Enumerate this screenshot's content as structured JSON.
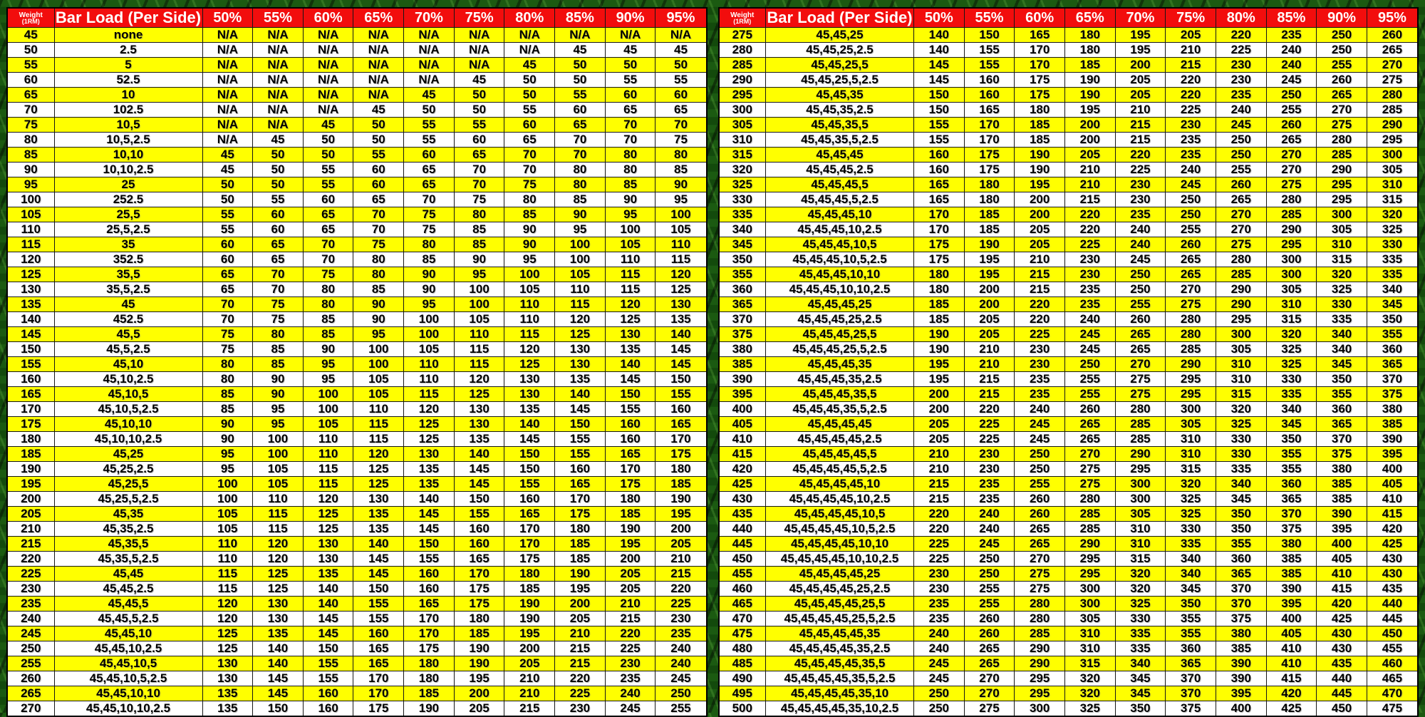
{
  "header": {
    "weight_line1": "Weight",
    "weight_line2": "(1RM)",
    "barload": "Bar Load (Per Side)",
    "percents": [
      "50%",
      "55%",
      "60%",
      "65%",
      "70%",
      "75%",
      "80%",
      "85%",
      "90%",
      "95%"
    ]
  },
  "colors": {
    "header_bg": "#f20d0d",
    "header_text": "#ffffff",
    "row_yellow": "#ffff00",
    "row_white": "#ffffff",
    "cell_text": "#000000",
    "grid": "#161616",
    "background_green": "#1b5a11"
  },
  "chart_data": {
    "type": "table",
    "columns": [
      "Weight (1RM)",
      "Bar Load (Per Side)",
      "50%",
      "55%",
      "60%",
      "65%",
      "70%",
      "75%",
      "80%",
      "85%",
      "90%",
      "95%"
    ],
    "left_rows": [
      [
        "45",
        "none",
        "N/A",
        "N/A",
        "N/A",
        "N/A",
        "N/A",
        "N/A",
        "N/A",
        "N/A",
        "N/A",
        "N/A"
      ],
      [
        "50",
        "2.5",
        "N/A",
        "N/A",
        "N/A",
        "N/A",
        "N/A",
        "N/A",
        "N/A",
        "45",
        "45",
        "45"
      ],
      [
        "55",
        "5",
        "N/A",
        "N/A",
        "N/A",
        "N/A",
        "N/A",
        "N/A",
        "45",
        "50",
        "50",
        "50"
      ],
      [
        "60",
        "52.5",
        "N/A",
        "N/A",
        "N/A",
        "N/A",
        "N/A",
        "45",
        "50",
        "50",
        "55",
        "55"
      ],
      [
        "65",
        "10",
        "N/A",
        "N/A",
        "N/A",
        "N/A",
        "45",
        "50",
        "50",
        "55",
        "60",
        "60"
      ],
      [
        "70",
        "102.5",
        "N/A",
        "N/A",
        "N/A",
        "45",
        "50",
        "50",
        "55",
        "60",
        "65",
        "65"
      ],
      [
        "75",
        "10,5",
        "N/A",
        "N/A",
        "45",
        "50",
        "55",
        "55",
        "60",
        "65",
        "70",
        "70"
      ],
      [
        "80",
        "10,5,2.5",
        "N/A",
        "45",
        "50",
        "50",
        "55",
        "60",
        "65",
        "70",
        "70",
        "75"
      ],
      [
        "85",
        "10,10",
        "45",
        "50",
        "50",
        "55",
        "60",
        "65",
        "70",
        "70",
        "80",
        "80"
      ],
      [
        "90",
        "10,10,2.5",
        "45",
        "50",
        "55",
        "60",
        "65",
        "70",
        "70",
        "80",
        "80",
        "85"
      ],
      [
        "95",
        "25",
        "50",
        "50",
        "55",
        "60",
        "65",
        "70",
        "75",
        "80",
        "85",
        "90"
      ],
      [
        "100",
        "252.5",
        "50",
        "55",
        "60",
        "65",
        "70",
        "75",
        "80",
        "85",
        "90",
        "95"
      ],
      [
        "105",
        "25,5",
        "55",
        "60",
        "65",
        "70",
        "75",
        "80",
        "85",
        "90",
        "95",
        "100"
      ],
      [
        "110",
        "25,5,2.5",
        "55",
        "60",
        "65",
        "70",
        "75",
        "85",
        "90",
        "95",
        "100",
        "105"
      ],
      [
        "115",
        "35",
        "60",
        "65",
        "70",
        "75",
        "80",
        "85",
        "90",
        "100",
        "105",
        "110"
      ],
      [
        "120",
        "352.5",
        "60",
        "65",
        "70",
        "80",
        "85",
        "90",
        "95",
        "100",
        "110",
        "115"
      ],
      [
        "125",
        "35,5",
        "65",
        "70",
        "75",
        "80",
        "90",
        "95",
        "100",
        "105",
        "115",
        "120"
      ],
      [
        "130",
        "35,5,2.5",
        "65",
        "70",
        "80",
        "85",
        "90",
        "100",
        "105",
        "110",
        "115",
        "125"
      ],
      [
        "135",
        "45",
        "70",
        "75",
        "80",
        "90",
        "95",
        "100",
        "110",
        "115",
        "120",
        "130"
      ],
      [
        "140",
        "452.5",
        "70",
        "75",
        "85",
        "90",
        "100",
        "105",
        "110",
        "120",
        "125",
        "135"
      ],
      [
        "145",
        "45,5",
        "75",
        "80",
        "85",
        "95",
        "100",
        "110",
        "115",
        "125",
        "130",
        "140"
      ],
      [
        "150",
        "45,5,2.5",
        "75",
        "85",
        "90",
        "100",
        "105",
        "115",
        "120",
        "130",
        "135",
        "145"
      ],
      [
        "155",
        "45,10",
        "80",
        "85",
        "95",
        "100",
        "110",
        "115",
        "125",
        "130",
        "140",
        "145"
      ],
      [
        "160",
        "45,10,2.5",
        "80",
        "90",
        "95",
        "105",
        "110",
        "120",
        "130",
        "135",
        "145",
        "150"
      ],
      [
        "165",
        "45,10,5",
        "85",
        "90",
        "100",
        "105",
        "115",
        "125",
        "130",
        "140",
        "150",
        "155"
      ],
      [
        "170",
        "45,10,5,2.5",
        "85",
        "95",
        "100",
        "110",
        "120",
        "130",
        "135",
        "145",
        "155",
        "160"
      ],
      [
        "175",
        "45,10,10",
        "90",
        "95",
        "105",
        "115",
        "125",
        "130",
        "140",
        "150",
        "160",
        "165"
      ],
      [
        "180",
        "45,10,10,2.5",
        "90",
        "100",
        "110",
        "115",
        "125",
        "135",
        "145",
        "155",
        "160",
        "170"
      ],
      [
        "185",
        "45,25",
        "95",
        "100",
        "110",
        "120",
        "130",
        "140",
        "150",
        "155",
        "165",
        "175"
      ],
      [
        "190",
        "45,25,2.5",
        "95",
        "105",
        "115",
        "125",
        "135",
        "145",
        "150",
        "160",
        "170",
        "180"
      ],
      [
        "195",
        "45,25,5",
        "100",
        "105",
        "115",
        "125",
        "135",
        "145",
        "155",
        "165",
        "175",
        "185"
      ],
      [
        "200",
        "45,25,5,2.5",
        "100",
        "110",
        "120",
        "130",
        "140",
        "150",
        "160",
        "170",
        "180",
        "190"
      ],
      [
        "205",
        "45,35",
        "105",
        "115",
        "125",
        "135",
        "145",
        "155",
        "165",
        "175",
        "185",
        "195"
      ],
      [
        "210",
        "45,35,2.5",
        "105",
        "115",
        "125",
        "135",
        "145",
        "160",
        "170",
        "180",
        "190",
        "200"
      ],
      [
        "215",
        "45,35,5",
        "110",
        "120",
        "130",
        "140",
        "150",
        "160",
        "170",
        "185",
        "195",
        "205"
      ],
      [
        "220",
        "45,35,5,2.5",
        "110",
        "120",
        "130",
        "145",
        "155",
        "165",
        "175",
        "185",
        "200",
        "210"
      ],
      [
        "225",
        "45,45",
        "115",
        "125",
        "135",
        "145",
        "160",
        "170",
        "180",
        "190",
        "205",
        "215"
      ],
      [
        "230",
        "45,45,2.5",
        "115",
        "125",
        "140",
        "150",
        "160",
        "175",
        "185",
        "195",
        "205",
        "220"
      ],
      [
        "235",
        "45,45,5",
        "120",
        "130",
        "140",
        "155",
        "165",
        "175",
        "190",
        "200",
        "210",
        "225"
      ],
      [
        "240",
        "45,45,5,2.5",
        "120",
        "130",
        "145",
        "155",
        "170",
        "180",
        "190",
        "205",
        "215",
        "230"
      ],
      [
        "245",
        "45,45,10",
        "125",
        "135",
        "145",
        "160",
        "170",
        "185",
        "195",
        "210",
        "220",
        "235"
      ],
      [
        "250",
        "45,45,10,2.5",
        "125",
        "140",
        "150",
        "165",
        "175",
        "190",
        "200",
        "215",
        "225",
        "240"
      ],
      [
        "255",
        "45,45,10,5",
        "130",
        "140",
        "155",
        "165",
        "180",
        "190",
        "205",
        "215",
        "230",
        "240"
      ],
      [
        "260",
        "45,45,10,5,2.5",
        "130",
        "145",
        "155",
        "170",
        "180",
        "195",
        "210",
        "220",
        "235",
        "245"
      ],
      [
        "265",
        "45,45,10,10",
        "135",
        "145",
        "160",
        "170",
        "185",
        "200",
        "210",
        "225",
        "240",
        "250"
      ],
      [
        "270",
        "45,45,10,10,2.5",
        "135",
        "150",
        "160",
        "175",
        "190",
        "205",
        "215",
        "230",
        "245",
        "255"
      ]
    ],
    "right_rows": [
      [
        "275",
        "45,45,25",
        "140",
        "150",
        "165",
        "180",
        "195",
        "205",
        "220",
        "235",
        "250",
        "260"
      ],
      [
        "280",
        "45,45,25,2.5",
        "140",
        "155",
        "170",
        "180",
        "195",
        "210",
        "225",
        "240",
        "250",
        "265"
      ],
      [
        "285",
        "45,45,25,5",
        "145",
        "155",
        "170",
        "185",
        "200",
        "215",
        "230",
        "240",
        "255",
        "270"
      ],
      [
        "290",
        "45,45,25,5,2.5",
        "145",
        "160",
        "175",
        "190",
        "205",
        "220",
        "230",
        "245",
        "260",
        "275"
      ],
      [
        "295",
        "45,45,35",
        "150",
        "160",
        "175",
        "190",
        "205",
        "220",
        "235",
        "250",
        "265",
        "280"
      ],
      [
        "300",
        "45,45,35,2.5",
        "150",
        "165",
        "180",
        "195",
        "210",
        "225",
        "240",
        "255",
        "270",
        "285"
      ],
      [
        "305",
        "45,45,35,5",
        "155",
        "170",
        "185",
        "200",
        "215",
        "230",
        "245",
        "260",
        "275",
        "290"
      ],
      [
        "310",
        "45,45,35,5,2.5",
        "155",
        "170",
        "185",
        "200",
        "215",
        "235",
        "250",
        "265",
        "280",
        "295"
      ],
      [
        "315",
        "45,45,45",
        "160",
        "175",
        "190",
        "205",
        "220",
        "235",
        "250",
        "270",
        "285",
        "300"
      ],
      [
        "320",
        "45,45,45,2.5",
        "160",
        "175",
        "190",
        "210",
        "225",
        "240",
        "255",
        "270",
        "290",
        "305"
      ],
      [
        "325",
        "45,45,45,5",
        "165",
        "180",
        "195",
        "210",
        "230",
        "245",
        "260",
        "275",
        "295",
        "310"
      ],
      [
        "330",
        "45,45,45,5,2.5",
        "165",
        "180",
        "200",
        "215",
        "230",
        "250",
        "265",
        "280",
        "295",
        "315"
      ],
      [
        "335",
        "45,45,45,10",
        "170",
        "185",
        "200",
        "220",
        "235",
        "250",
        "270",
        "285",
        "300",
        "320"
      ],
      [
        "340",
        "45,45,45,10,2.5",
        "170",
        "185",
        "205",
        "220",
        "240",
        "255",
        "270",
        "290",
        "305",
        "325"
      ],
      [
        "345",
        "45,45,45,10,5",
        "175",
        "190",
        "205",
        "225",
        "240",
        "260",
        "275",
        "295",
        "310",
        "330"
      ],
      [
        "350",
        "45,45,45,10,5,2.5",
        "175",
        "195",
        "210",
        "230",
        "245",
        "265",
        "280",
        "300",
        "315",
        "335"
      ],
      [
        "355",
        "45,45,45,10,10",
        "180",
        "195",
        "215",
        "230",
        "250",
        "265",
        "285",
        "300",
        "320",
        "335"
      ],
      [
        "360",
        "45,45,45,10,10,2.5",
        "180",
        "200",
        "215",
        "235",
        "250",
        "270",
        "290",
        "305",
        "325",
        "340"
      ],
      [
        "365",
        "45,45,45,25",
        "185",
        "200",
        "220",
        "235",
        "255",
        "275",
        "290",
        "310",
        "330",
        "345"
      ],
      [
        "370",
        "45,45,45,25,2.5",
        "185",
        "205",
        "220",
        "240",
        "260",
        "280",
        "295",
        "315",
        "335",
        "350"
      ],
      [
        "375",
        "45,45,45,25,5",
        "190",
        "205",
        "225",
        "245",
        "265",
        "280",
        "300",
        "320",
        "340",
        "355"
      ],
      [
        "380",
        "45,45,45,25,5,2.5",
        "190",
        "210",
        "230",
        "245",
        "265",
        "285",
        "305",
        "325",
        "340",
        "360"
      ],
      [
        "385",
        "45,45,45,35",
        "195",
        "210",
        "230",
        "250",
        "270",
        "290",
        "310",
        "325",
        "345",
        "365"
      ],
      [
        "390",
        "45,45,45,35,2.5",
        "195",
        "215",
        "235",
        "255",
        "275",
        "295",
        "310",
        "330",
        "350",
        "370"
      ],
      [
        "395",
        "45,45,45,35,5",
        "200",
        "215",
        "235",
        "255",
        "275",
        "295",
        "315",
        "335",
        "355",
        "375"
      ],
      [
        "400",
        "45,45,45,35,5,2.5",
        "200",
        "220",
        "240",
        "260",
        "280",
        "300",
        "320",
        "340",
        "360",
        "380"
      ],
      [
        "405",
        "45,45,45,45",
        "205",
        "225",
        "245",
        "265",
        "285",
        "305",
        "325",
        "345",
        "365",
        "385"
      ],
      [
        "410",
        "45,45,45,45,2.5",
        "205",
        "225",
        "245",
        "265",
        "285",
        "310",
        "330",
        "350",
        "370",
        "390"
      ],
      [
        "415",
        "45,45,45,45,5",
        "210",
        "230",
        "250",
        "270",
        "290",
        "310",
        "330",
        "355",
        "375",
        "395"
      ],
      [
        "420",
        "45,45,45,45,5,2.5",
        "210",
        "230",
        "250",
        "275",
        "295",
        "315",
        "335",
        "355",
        "380",
        "400"
      ],
      [
        "425",
        "45,45,45,45,10",
        "215",
        "235",
        "255",
        "275",
        "300",
        "320",
        "340",
        "360",
        "385",
        "405"
      ],
      [
        "430",
        "45,45,45,45,10,2.5",
        "215",
        "235",
        "260",
        "280",
        "300",
        "325",
        "345",
        "365",
        "385",
        "410"
      ],
      [
        "435",
        "45,45,45,45,10,5",
        "220",
        "240",
        "260",
        "285",
        "305",
        "325",
        "350",
        "370",
        "390",
        "415"
      ],
      [
        "440",
        "45,45,45,45,10,5,2.5",
        "220",
        "240",
        "265",
        "285",
        "310",
        "330",
        "350",
        "375",
        "395",
        "420"
      ],
      [
        "445",
        "45,45,45,45,10,10",
        "225",
        "245",
        "265",
        "290",
        "310",
        "335",
        "355",
        "380",
        "400",
        "425"
      ],
      [
        "450",
        "45,45,45,45,10,10,2.5",
        "225",
        "250",
        "270",
        "295",
        "315",
        "340",
        "360",
        "385",
        "405",
        "430"
      ],
      [
        "455",
        "45,45,45,45,25",
        "230",
        "250",
        "275",
        "295",
        "320",
        "340",
        "365",
        "385",
        "410",
        "430"
      ],
      [
        "460",
        "45,45,45,45,25,2.5",
        "230",
        "255",
        "275",
        "300",
        "320",
        "345",
        "370",
        "390",
        "415",
        "435"
      ],
      [
        "465",
        "45,45,45,45,25,5",
        "235",
        "255",
        "280",
        "300",
        "325",
        "350",
        "370",
        "395",
        "420",
        "440"
      ],
      [
        "470",
        "45,45,45,45,25,5,2.5",
        "235",
        "260",
        "280",
        "305",
        "330",
        "355",
        "375",
        "400",
        "425",
        "445"
      ],
      [
        "475",
        "45,45,45,45,35",
        "240",
        "260",
        "285",
        "310",
        "335",
        "355",
        "380",
        "405",
        "430",
        "450"
      ],
      [
        "480",
        "45,45,45,45,35,2.5",
        "240",
        "265",
        "290",
        "310",
        "335",
        "360",
        "385",
        "410",
        "430",
        "455"
      ],
      [
        "485",
        "45,45,45,45,35,5",
        "245",
        "265",
        "290",
        "315",
        "340",
        "365",
        "390",
        "410",
        "435",
        "460"
      ],
      [
        "490",
        "45,45,45,45,35,5,2.5",
        "245",
        "270",
        "295",
        "320",
        "345",
        "370",
        "390",
        "415",
        "440",
        "465"
      ],
      [
        "495",
        "45,45,45,45,35,10",
        "250",
        "270",
        "295",
        "320",
        "345",
        "370",
        "395",
        "420",
        "445",
        "470"
      ],
      [
        "500",
        "45,45,45,45,35,10,2.5",
        "250",
        "275",
        "300",
        "325",
        "350",
        "375",
        "400",
        "425",
        "450",
        "475"
      ]
    ]
  }
}
